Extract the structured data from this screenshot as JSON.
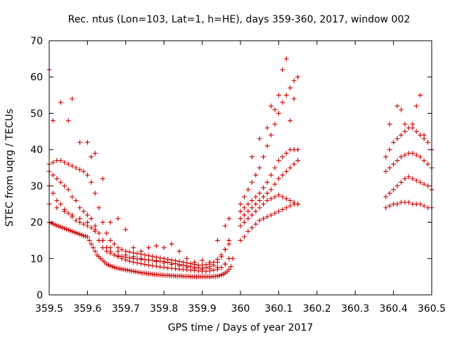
{
  "chart_data": {
    "type": "scatter",
    "title": "Rec. ntus (Lon=103, Lat=1, h=HE), days 359-360, 2017, window 002",
    "xlabel": "GPS time / Days of year 2017",
    "ylabel": "STEC from uqrg / TECUs",
    "xlim": [
      359.5,
      360.5
    ],
    "ylim": [
      0,
      70
    ],
    "xticks": [
      359.5,
      359.6,
      359.7,
      359.8,
      359.9,
      360,
      360.1,
      360.2,
      360.3,
      360.4,
      360.5
    ],
    "xtick_labels": [
      "359.5",
      "359.6",
      "359.7",
      "359.8",
      "359.9",
      "360",
      "360.1",
      "360.2",
      "360.3",
      "360.4",
      "360.5"
    ],
    "yticks": [
      0,
      10,
      20,
      30,
      40,
      50,
      60,
      70
    ],
    "ytick_labels": [
      "0",
      "10",
      "20",
      "30",
      "40",
      "50",
      "60",
      "70"
    ],
    "grid": false,
    "marker": "plus",
    "color": "#cc0000",
    "series": [
      {
        "x": [
          359.5,
          359.505,
          359.51,
          359.515,
          359.52,
          359.525,
          359.53,
          359.535,
          359.54,
          359.545,
          359.55,
          359.555,
          359.56,
          359.565,
          359.57,
          359.575,
          359.58,
          359.585,
          359.59,
          359.595,
          359.6,
          359.605,
          359.61,
          359.615,
          359.62,
          359.625,
          359.63,
          359.635,
          359.64,
          359.645,
          359.65,
          359.655,
          359.66,
          359.665,
          359.67,
          359.675,
          359.68,
          359.685,
          359.69,
          359.695,
          359.7,
          359.705,
          359.71,
          359.715,
          359.72,
          359.725,
          359.73,
          359.735,
          359.74,
          359.745,
          359.75,
          359.755,
          359.76,
          359.765,
          359.77,
          359.775,
          359.78,
          359.785,
          359.79,
          359.795,
          359.8,
          359.805,
          359.81,
          359.815,
          359.82,
          359.825,
          359.83,
          359.835,
          359.84,
          359.845,
          359.85,
          359.855,
          359.86,
          359.865,
          359.87,
          359.875,
          359.88,
          359.885,
          359.89,
          359.895,
          359.9,
          359.905,
          359.91,
          359.915,
          359.92,
          359.925,
          359.93,
          359.935,
          359.94,
          359.945,
          359.95,
          359.955,
          359.96,
          359.965,
          359.97,
          359.975
        ],
        "y": [
          20,
          19.8,
          19.6,
          19.3,
          19.1,
          18.9,
          18.7,
          18.5,
          18.3,
          18.1,
          17.9,
          17.7,
          17.5,
          17.3,
          17.1,
          16.9,
          16.7,
          16.5,
          16.3,
          16.1,
          16,
          15,
          14,
          13,
          12,
          11,
          10.5,
          10,
          9.5,
          9,
          8.5,
          8.2,
          8,
          7.8,
          7.6,
          7.4,
          7.3,
          7.2,
          7.1,
          7,
          6.9,
          6.8,
          6.7,
          6.6,
          6.5,
          6.4,
          6.3,
          6.2,
          6.1,
          6,
          6,
          5.9,
          5.8,
          5.8,
          5.7,
          5.6,
          5.6,
          5.5,
          5.5,
          5.5,
          5.4,
          5.4,
          5.4,
          5.3,
          5.3,
          5.3,
          5.2,
          5.2,
          5.2,
          5.2,
          5.1,
          5.1,
          5.1,
          5.1,
          5,
          5,
          5,
          5,
          5,
          5,
          5,
          5,
          5,
          5,
          5,
          5,
          5.1,
          5.1,
          5.2,
          5.3,
          5.5,
          5.7,
          6,
          6.4,
          7,
          7.8
        ]
      },
      {
        "x": [
          359.5,
          359.51,
          359.52,
          359.53,
          359.54,
          359.55,
          359.56,
          359.57,
          359.58,
          359.59,
          359.6,
          359.61,
          359.62,
          359.63,
          359.64,
          359.65,
          359.66,
          359.67,
          359.68,
          359.69,
          359.7,
          359.71,
          359.72,
          359.73,
          359.74,
          359.75,
          359.76,
          359.77,
          359.78,
          359.79,
          359.8,
          359.81,
          359.82,
          359.83,
          359.84,
          359.85,
          359.86,
          359.87,
          359.88,
          359.89,
          359.9,
          359.91,
          359.92,
          359.93,
          359.94,
          359.95,
          359.96,
          359.97
        ],
        "y": [
          34,
          33,
          32,
          31,
          30,
          29,
          27,
          26,
          24,
          23,
          22,
          21,
          19,
          17,
          15,
          13,
          12,
          11,
          10.5,
          10,
          9.6,
          9.3,
          9,
          8.8,
          8.6,
          8.4,
          8.2,
          8,
          7.9,
          7.7,
          7.6,
          7.4,
          7.3,
          7.2,
          7.1,
          7,
          6.9,
          6.8,
          6.7,
          6.6,
          6.5,
          6.5,
          6.6,
          6.8,
          7,
          7.5,
          8.5,
          10
        ]
      },
      {
        "x": [
          359.5,
          359.51,
          359.52,
          359.53,
          359.54,
          359.55,
          359.56,
          359.57,
          359.58,
          359.59,
          359.6,
          359.61,
          359.62,
          359.63,
          359.64,
          359.65,
          359.66,
          359.67,
          359.68,
          359.69,
          359.7,
          359.71,
          359.72,
          359.73,
          359.74,
          359.75,
          359.76,
          359.77,
          359.78,
          359.79,
          359.8,
          359.81,
          359.82,
          359.83,
          359.84,
          359.85,
          359.86,
          359.87,
          359.88,
          359.89,
          359.9,
          359.91,
          359.92,
          359.93,
          359.94,
          359.95,
          359.96,
          359.97
        ],
        "y": [
          36,
          36.5,
          37,
          37,
          36.5,
          36,
          35.5,
          35,
          34.5,
          34,
          33,
          31,
          28,
          24,
          20,
          17,
          15,
          14,
          13,
          12.5,
          12,
          11.8,
          11.6,
          11.4,
          11.2,
          11,
          10.8,
          10.6,
          10.4,
          10.2,
          10,
          9.8,
          9.6,
          9.4,
          9.2,
          9,
          8.8,
          8.6,
          8.4,
          8.2,
          8.2,
          8.3,
          8.5,
          9,
          9.8,
          11,
          12.5,
          14
        ]
      },
      {
        "x": [
          359.5,
          359.52,
          359.54,
          359.56,
          359.58,
          359.6,
          359.62,
          359.64,
          359.66,
          359.68,
          359.7,
          359.72,
          359.74,
          359.76,
          359.78,
          359.8,
          359.82,
          359.84,
          359.86,
          359.88,
          359.9,
          359.92,
          359.94,
          359.96,
          359.98
        ],
        "y": [
          25,
          24,
          23,
          22,
          21,
          20,
          18,
          15,
          13,
          12,
          11,
          10.5,
          10,
          9.6,
          9.2,
          8.8,
          8.4,
          8,
          7.6,
          7.2,
          7,
          7.2,
          7.6,
          8.5,
          10
        ]
      },
      {
        "x": [
          359.5,
          359.51,
          359.52,
          359.53,
          359.54,
          359.55,
          359.56,
          359.57,
          359.58,
          359.59,
          359.6,
          359.61,
          359.62,
          359.63,
          359.64,
          359.65,
          359.66,
          359.67,
          359.68,
          359.69,
          359.7,
          359.71,
          359.72,
          359.73,
          359.74,
          359.75,
          359.76,
          359.77,
          359.78,
          359.79,
          359.8,
          359.81,
          359.82,
          359.83,
          359.84,
          359.85,
          359.86,
          359.87,
          359.88,
          359.89,
          359.9,
          359.91,
          359.92,
          359.93,
          359.94,
          359.95,
          359.96,
          359.97
        ],
        "y": [
          30,
          28,
          26,
          25,
          23.5,
          22.5,
          21.5,
          20.5,
          20,
          19.5,
          19,
          18.5,
          17.5,
          15,
          13,
          12,
          11.5,
          11,
          10.8,
          10.6,
          10.4,
          10.2,
          10,
          9.9,
          9.8,
          9.7,
          9.6,
          9.5,
          9.4,
          9.3,
          9.2,
          9,
          8.8,
          8.6,
          8.4,
          8.2,
          8,
          7.8,
          7.6,
          7.5,
          7.4,
          7.5,
          7.8,
          8.2,
          9,
          10.5,
          12.5,
          15
        ]
      },
      {
        "x": [
          359.5,
          359.51,
          359.53,
          359.55,
          359.56,
          359.58,
          359.6,
          359.61,
          359.62,
          359.64,
          359.66,
          359.68,
          359.7,
          359.72,
          359.74,
          359.76,
          359.78,
          359.8,
          359.82,
          359.84,
          359.86,
          359.88,
          359.9,
          359.92,
          359.94,
          359.96,
          359.97
        ],
        "y": [
          62,
          48,
          53,
          48,
          54,
          42,
          42,
          38,
          39,
          32,
          20,
          21,
          18,
          13,
          12,
          13,
          13.5,
          13,
          14,
          12,
          10,
          9,
          9.5,
          9,
          15,
          19,
          21
        ]
      },
      {
        "x": [
          360.0,
          360.01,
          360.02,
          360.03,
          360.04,
          360.05,
          360.06,
          360.07,
          360.08,
          360.09,
          360.1,
          360.11,
          360.12,
          360.13,
          360.14,
          360.15
        ],
        "y": [
          15,
          16,
          17.5,
          18.5,
          19.5,
          20.5,
          21,
          21.5,
          22,
          22.5,
          23,
          23.5,
          24,
          24.5,
          25,
          25
        ]
      },
      {
        "x": [
          360.0,
          360.01,
          360.02,
          360.03,
          360.04,
          360.05,
          360.06,
          360.07,
          360.08,
          360.09,
          360.1,
          360.11,
          360.12,
          360.13,
          360.14,
          360.15
        ],
        "y": [
          19,
          20,
          21,
          22,
          23,
          24,
          25,
          26,
          26.5,
          27,
          27.5,
          27,
          26.5,
          26,
          25.5,
          25
        ]
      },
      {
        "x": [
          360.0,
          360.01,
          360.02,
          360.03,
          360.04,
          360.05,
          360.06,
          360.07,
          360.08,
          360.09,
          360.1,
          360.11,
          360.12,
          360.13,
          360.14,
          360.15
        ],
        "y": [
          21,
          22,
          23,
          24,
          25,
          26,
          27,
          28,
          29,
          30.5,
          32,
          33,
          34,
          35,
          36,
          37
        ]
      },
      {
        "x": [
          360.0,
          360.01,
          360.02,
          360.03,
          360.04,
          360.05,
          360.06,
          360.07,
          360.08,
          360.09,
          360.1,
          360.11,
          360.12,
          360.13,
          360.14,
          360.15
        ],
        "y": [
          23,
          24,
          25,
          26,
          27,
          28,
          29.5,
          31,
          33,
          35,
          37,
          38,
          39,
          40,
          40,
          40
        ]
      },
      {
        "x": [
          360.0,
          360.01,
          360.02,
          360.03,
          360.04,
          360.05,
          360.06,
          360.07,
          360.08,
          360.09,
          360.1,
          360.11,
          360.12,
          360.13,
          360.14,
          360.15
        ],
        "y": [
          25,
          27,
          29,
          31,
          33,
          35,
          38,
          41,
          44,
          47,
          50,
          53,
          55,
          57,
          59,
          60
        ]
      },
      {
        "x": [
          360.03,
          360.05,
          360.07,
          360.08,
          360.09,
          360.1,
          360.11,
          360.12,
          360.13,
          360.14
        ],
        "y": [
          38,
          43,
          46,
          52,
          51,
          55,
          62,
          65,
          48,
          54
        ]
      },
      {
        "x": [
          360.38,
          360.39,
          360.4,
          360.41,
          360.42,
          360.43,
          360.44,
          360.45,
          360.46,
          360.47,
          360.48,
          360.49,
          360.5
        ],
        "y": [
          24,
          24.5,
          25,
          25,
          25.5,
          25.5,
          25.5,
          25,
          25,
          25,
          24.5,
          24,
          24
        ]
      },
      {
        "x": [
          360.38,
          360.39,
          360.4,
          360.41,
          360.42,
          360.43,
          360.44,
          360.45,
          360.46,
          360.47,
          360.48,
          360.49,
          360.5
        ],
        "y": [
          27,
          28,
          29,
          30,
          31,
          32,
          32.5,
          32,
          31.5,
          31,
          30.5,
          30,
          29
        ]
      },
      {
        "x": [
          360.38,
          360.39,
          360.4,
          360.41,
          360.42,
          360.43,
          360.44,
          360.45,
          360.46,
          360.47,
          360.48,
          360.49,
          360.5
        ],
        "y": [
          34,
          35,
          36,
          37,
          38,
          38.5,
          39,
          39,
          38.5,
          38,
          37,
          36,
          35
        ]
      },
      {
        "x": [
          360.38,
          360.39,
          360.4,
          360.41,
          360.42,
          360.43,
          360.44,
          360.45,
          360.46,
          360.47,
          360.48,
          360.49,
          360.5
        ],
        "y": [
          38,
          40,
          42,
          43,
          44,
          45,
          46,
          46,
          45,
          44,
          43,
          42,
          40
        ]
      },
      {
        "x": [
          360.39,
          360.41,
          360.42,
          360.43,
          360.45,
          360.46,
          360.47,
          360.48
        ],
        "y": [
          47,
          52,
          51,
          47,
          47,
          52,
          55,
          44
        ]
      }
    ]
  }
}
